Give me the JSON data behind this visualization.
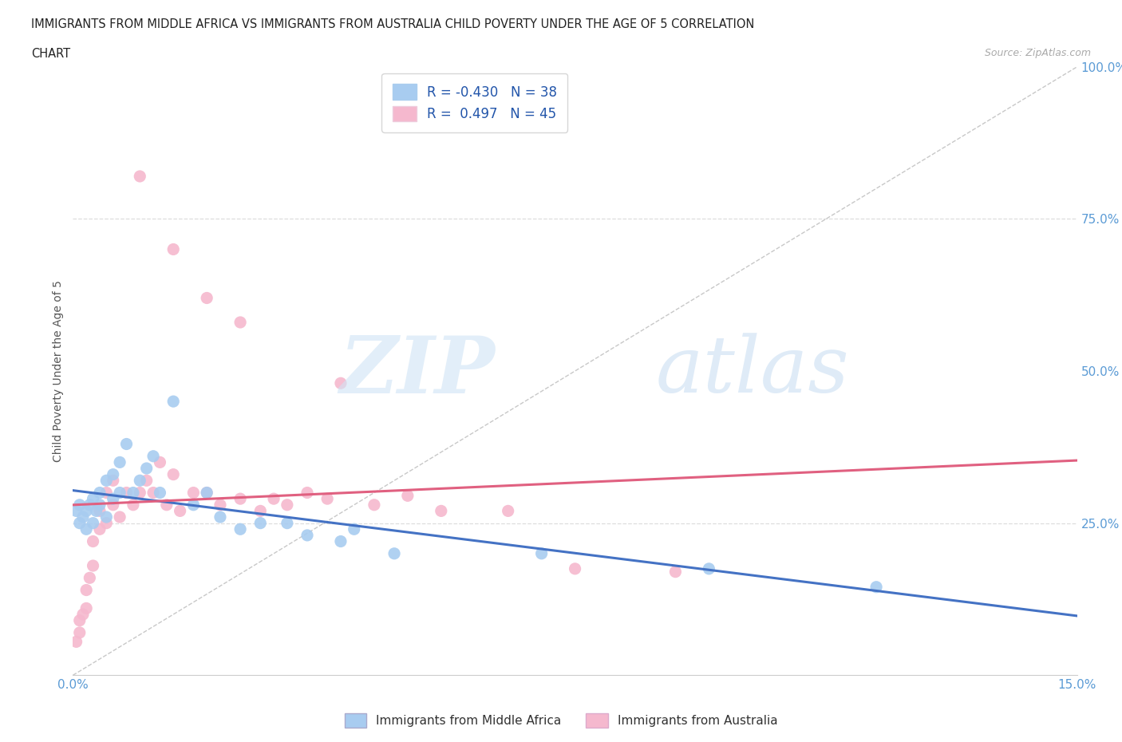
{
  "title_line1": "IMMIGRANTS FROM MIDDLE AFRICA VS IMMIGRANTS FROM AUSTRALIA CHILD POVERTY UNDER THE AGE OF 5 CORRELATION",
  "title_line2": "CHART",
  "source": "Source: ZipAtlas.com",
  "ylabel": "Child Poverty Under the Age of 5",
  "x_min": 0.0,
  "x_max": 0.15,
  "y_min": 0.0,
  "y_max": 1.0,
  "R_blue": -0.43,
  "N_blue": 38,
  "R_pink": 0.497,
  "N_pink": 45,
  "color_blue": "#A8CCF0",
  "color_pink": "#F5B8CE",
  "color_blue_line": "#4472C4",
  "color_pink_line": "#E06080",
  "color_diag": "#C8C8C8",
  "blue_scatter_x": [
    0.0005,
    0.001,
    0.001,
    0.0015,
    0.002,
    0.002,
    0.0025,
    0.003,
    0.003,
    0.0035,
    0.004,
    0.004,
    0.005,
    0.005,
    0.006,
    0.006,
    0.007,
    0.007,
    0.008,
    0.009,
    0.01,
    0.011,
    0.012,
    0.013,
    0.015,
    0.018,
    0.02,
    0.022,
    0.025,
    0.028,
    0.032,
    0.035,
    0.04,
    0.042,
    0.048,
    0.07,
    0.095,
    0.12
  ],
  "blue_scatter_y": [
    0.27,
    0.25,
    0.28,
    0.26,
    0.24,
    0.27,
    0.28,
    0.25,
    0.29,
    0.27,
    0.28,
    0.3,
    0.26,
    0.32,
    0.29,
    0.33,
    0.3,
    0.35,
    0.38,
    0.3,
    0.32,
    0.34,
    0.36,
    0.3,
    0.45,
    0.28,
    0.3,
    0.26,
    0.24,
    0.25,
    0.25,
    0.23,
    0.22,
    0.24,
    0.2,
    0.2,
    0.175,
    0.145
  ],
  "pink_scatter_x": [
    0.0005,
    0.001,
    0.001,
    0.0015,
    0.002,
    0.002,
    0.0025,
    0.003,
    0.003,
    0.004,
    0.004,
    0.005,
    0.005,
    0.006,
    0.006,
    0.007,
    0.008,
    0.009,
    0.01,
    0.011,
    0.012,
    0.013,
    0.014,
    0.015,
    0.016,
    0.018,
    0.02,
    0.022,
    0.025,
    0.028,
    0.03,
    0.032,
    0.035,
    0.038,
    0.045,
    0.05,
    0.055,
    0.065,
    0.075,
    0.09,
    0.01,
    0.015,
    0.02,
    0.025,
    0.04
  ],
  "pink_scatter_y": [
    0.055,
    0.07,
    0.09,
    0.1,
    0.11,
    0.14,
    0.16,
    0.18,
    0.22,
    0.24,
    0.27,
    0.25,
    0.3,
    0.28,
    0.32,
    0.26,
    0.3,
    0.28,
    0.3,
    0.32,
    0.3,
    0.35,
    0.28,
    0.33,
    0.27,
    0.3,
    0.3,
    0.28,
    0.29,
    0.27,
    0.29,
    0.28,
    0.3,
    0.29,
    0.28,
    0.295,
    0.27,
    0.27,
    0.175,
    0.17,
    0.82,
    0.7,
    0.62,
    0.58,
    0.48
  ]
}
